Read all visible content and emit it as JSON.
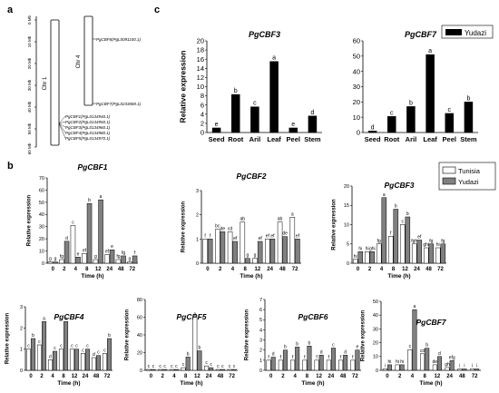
{
  "figure": {
    "panel_labels": {
      "a": "a",
      "b": "b",
      "c": "c"
    },
    "chr_map": {
      "ruler_ticks": [
        "0 Mb",
        "10 Mb",
        "20 Mb",
        "30 Mb",
        "40 Mb",
        "50 Mb",
        "60 Mb"
      ],
      "chr1_label": "Chr 1",
      "chr4_label": "Chr 4",
      "chr4_genes": [
        "PgCBF6(PgL0091150.1)",
        "PgCBF7(PgL0233080.1)"
      ],
      "chr1_genes": [
        "PgCBF1(PgL0134940.1)",
        "PgCBF2(PgL0134950.1)",
        "PgCBF3(PgL0134960.1)",
        "PgCBF4(PgL0134980.1)",
        "PgCBF5(PgL0134970.1)"
      ]
    },
    "legend_c": {
      "label": "Yudazi",
      "color": "#000000"
    },
    "legend_b": [
      {
        "label": "Tunisia",
        "color": "#ffffff"
      },
      {
        "label": "Yudazi",
        "color": "#808080"
      }
    ],
    "common_labels": {
      "ylabel": "Relative expression",
      "xlabel": "Time (h)"
    }
  },
  "chart_data": [
    {
      "id": "c-cbf3",
      "type": "bar",
      "title": "PgCBF3",
      "ylabel": "Relative expression",
      "categories": [
        "Seed",
        "Root",
        "Aril",
        "Leaf",
        "Peel",
        "Stem"
      ],
      "series": [
        {
          "name": "Yudazi",
          "color": "#000000",
          "values": [
            1,
            8.3,
            5.6,
            15.5,
            1,
            3.6
          ]
        }
      ],
      "letters": [
        "e",
        "b",
        "c",
        "a",
        "e",
        "d"
      ],
      "ylim": [
        0,
        20
      ],
      "yticks": [
        0,
        2,
        4,
        6,
        8,
        10,
        12,
        14,
        16,
        18,
        20
      ]
    },
    {
      "id": "c-cbf7",
      "type": "bar",
      "title": "PgCBF7",
      "categories": [
        "Seed",
        "Root",
        "Aril",
        "Leaf",
        "Peel",
        "Stem"
      ],
      "series": [
        {
          "name": "Yudazi",
          "color": "#000000",
          "values": [
            1,
            10.5,
            17,
            51,
            12.5,
            20
          ]
        }
      ],
      "letters": [
        "d",
        "c",
        "b",
        "a",
        "c",
        "b"
      ],
      "ylim": [
        0,
        60
      ],
      "yticks": [
        0,
        10,
        20,
        30,
        40,
        50,
        60
      ]
    },
    {
      "id": "b-cbf1",
      "type": "bar",
      "title": "PgCBF1",
      "ylabel": "Relative expression",
      "xlabel": "Time (h)",
      "categories": [
        "0",
        "2",
        "4",
        "8",
        "12",
        "24",
        "48",
        "72"
      ],
      "series": [
        {
          "name": "Tunisia",
          "color": "#ffffff",
          "values": [
            1,
            3,
            31,
            8,
            3,
            7,
            3,
            1
          ]
        },
        {
          "name": "Yudazi",
          "color": "#808080",
          "values": [
            1,
            18,
            5,
            49,
            52,
            11,
            6,
            6
          ]
        }
      ],
      "letters": [
        [
          "g",
          "g"
        ],
        [
          "fg",
          "d"
        ],
        [
          "c",
          "e"
        ],
        [
          "ef",
          "b"
        ],
        [
          "g",
          "a"
        ],
        [
          "ef",
          "e"
        ],
        [
          "fg",
          "fg"
        ],
        [
          "g",
          "f"
        ]
      ],
      "ylim": [
        0,
        70
      ],
      "yticks": [
        0,
        10,
        20,
        30,
        40,
        50,
        60,
        70
      ]
    },
    {
      "id": "b-cbf2",
      "type": "bar",
      "title": "PgCBF2",
      "ylabel": "Relative expression",
      "xlabel": "Time (h)",
      "categories": [
        "0",
        "2",
        "4",
        "8",
        "12",
        "24",
        "48",
        "72"
      ],
      "series": [
        {
          "name": "Tunisia",
          "color": "#ffffff",
          "values": [
            1,
            1.4,
            1.3,
            1.7,
            0.2,
            1,
            1.7,
            1.9
          ]
        },
        {
          "name": "Yudazi",
          "color": "#808080",
          "values": [
            1,
            1.3,
            0.9,
            0.2,
            0.9,
            1,
            1.1,
            1
          ]
        }
      ],
      "letters": [
        [
          "f",
          "f"
        ],
        [
          "bc",
          "de"
        ],
        [
          "cd",
          "ef"
        ],
        [
          "ab",
          "g"
        ],
        [
          "g",
          "ef"
        ],
        [
          "ef",
          "ef"
        ],
        [
          "ab",
          "de"
        ],
        [
          "a",
          "ef"
        ]
      ],
      "ylim": [
        0,
        3
      ],
      "yticks": [
        0,
        1,
        2,
        3
      ]
    },
    {
      "id": "b-cbf3",
      "type": "bar",
      "title": "PgCBF3",
      "ylabel": "Relative expression",
      "xlabel": "Time (h)",
      "categories": [
        "0",
        "2",
        "4",
        "8",
        "12",
        "24",
        "48",
        "72"
      ],
      "series": [
        {
          "name": "Tunisia",
          "color": "#ffffff",
          "values": [
            1,
            3,
            5,
            7,
            10,
            5,
            4,
            4
          ]
        },
        {
          "name": "Yudazi",
          "color": "#808080",
          "values": [
            3,
            3,
            17,
            14,
            12,
            6,
            5,
            5
          ]
        }
      ],
      "letters": [
        [
          "hi",
          "hi"
        ],
        [
          "hi",
          "ghi"
        ],
        [
          "fg",
          "a"
        ],
        [
          "f",
          "b"
        ],
        [
          "c",
          "b"
        ],
        [
          "fgh",
          "ef"
        ],
        [
          "ghi",
          "fg"
        ],
        [
          "hi",
          "fg"
        ]
      ],
      "ylim": [
        0,
        20
      ],
      "yticks": [
        0,
        5,
        10,
        15,
        20
      ]
    },
    {
      "id": "b-cbf4",
      "type": "bar",
      "title": "PgCBF4",
      "ylabel": "Relative expression",
      "xlabel": "Time (h)",
      "categories": [
        "0",
        "2",
        "4",
        "8",
        "12",
        "24",
        "48",
        "72"
      ],
      "series": [
        {
          "name": "Tunisia",
          "color": "#ffffff",
          "values": [
            1,
            1.2,
            0.5,
            1,
            1,
            0.8,
            0.6,
            0.8
          ]
        },
        {
          "name": "Yudazi",
          "color": "#808080",
          "values": [
            1.5,
            2.3,
            0.9,
            2.3,
            1,
            1,
            0.7,
            1.5
          ]
        }
      ],
      "letters": [
        [
          "c",
          "b"
        ],
        [
          "c",
          "a"
        ],
        [
          "d",
          "c"
        ],
        [
          "c",
          "a"
        ],
        [
          "c",
          "c"
        ],
        [
          "c",
          "c"
        ],
        [
          "d",
          "c"
        ],
        [
          "c",
          "b"
        ]
      ],
      "ylim": [
        0,
        3
      ],
      "yticks": [
        0,
        1,
        2,
        3
      ]
    },
    {
      "id": "b-cbf5",
      "type": "bar",
      "title": "PgCBF5",
      "ylabel": "Relative expression",
      "xlabel": "Time (h)",
      "categories": [
        "0",
        "2",
        "4",
        "8",
        "12",
        "24",
        "48",
        "72"
      ],
      "series": [
        {
          "name": "Tunisia",
          "color": "#ffffff",
          "values": [
            1,
            1,
            1,
            3,
            60,
            5,
            1,
            1
          ]
        },
        {
          "name": "Yudazi",
          "color": "#808080",
          "values": [
            1,
            1,
            1,
            15,
            22,
            3,
            1,
            1
          ]
        }
      ],
      "letters": [
        [
          "c",
          "c"
        ],
        [
          "c",
          "c"
        ],
        [
          "c",
          "c"
        ],
        [
          "c",
          "b"
        ],
        [
          "a",
          "b"
        ],
        [
          "c",
          "c"
        ],
        [
          "c",
          "c"
        ],
        [
          "c",
          "c"
        ]
      ],
      "ylim": [
        0,
        80
      ],
      "yticks": [
        0,
        20,
        40,
        60,
        80
      ]
    },
    {
      "id": "b-cbf6",
      "type": "bar",
      "title": "PgCBF6",
      "ylabel": "Relative expression",
      "xlabel": "Time (h)",
      "categories": [
        "0",
        "2",
        "4",
        "8",
        "12",
        "24",
        "48",
        "72"
      ],
      "series": [
        {
          "name": "Tunisia",
          "color": "#ffffff",
          "values": [
            1,
            1,
            1,
            1,
            1,
            1,
            1,
            1
          ]
        },
        {
          "name": "Yudazi",
          "color": "#808080",
          "values": [
            1.3,
            2,
            2.3,
            2.4,
            1.5,
            2.2,
            1.5,
            2
          ]
        }
      ],
      "letters": [
        [
          "f",
          "d"
        ],
        [
          "f",
          "b"
        ],
        [
          "f",
          "b"
        ],
        [
          "f",
          "b"
        ],
        [
          "f",
          "d"
        ],
        [
          "f",
          "c"
        ],
        [
          "f",
          "d"
        ],
        [
          "f",
          "e"
        ]
      ],
      "ylim": [
        0,
        7
      ],
      "yticks": [
        0,
        1,
        2,
        3,
        4,
        5,
        6,
        7
      ]
    },
    {
      "id": "b-cbf7",
      "type": "bar",
      "title": "PgCBF7",
      "ylabel": "Relative expression",
      "xlabel": "Time (h)",
      "categories": [
        "0",
        "2",
        "4",
        "8",
        "12",
        "24",
        "48",
        "72"
      ],
      "series": [
        {
          "name": "Tunisia",
          "color": "#ffffff",
          "values": [
            1,
            4,
            15,
            12,
            4,
            2,
            1,
            1
          ]
        },
        {
          "name": "Yudazi",
          "color": "#808080",
          "values": [
            4,
            4,
            44,
            16,
            10,
            7,
            1,
            1
          ]
        }
      ],
      "letters": [
        [
          "i",
          "hi"
        ],
        [
          "hi",
          "hi"
        ],
        [
          "c",
          "a"
        ],
        [
          "cd",
          "b"
        ],
        [
          "de",
          "d"
        ],
        [
          "gh",
          "efg"
        ],
        [
          "i",
          "i"
        ],
        [
          "i",
          "i"
        ]
      ],
      "ylim": [
        0,
        50
      ],
      "yticks": [
        0,
        10,
        20,
        30,
        40,
        50
      ]
    }
  ]
}
